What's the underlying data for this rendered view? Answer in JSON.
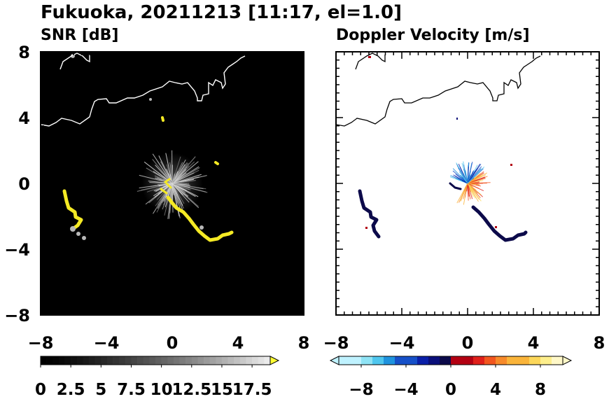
{
  "title": "Fukuoka, 20211213 [11:17, el=1.0]",
  "chart_data": [
    {
      "type": "heatmap",
      "subtitle": "SNR [dB]",
      "xlim": [
        -8,
        8
      ],
      "ylim": [
        -8,
        8
      ],
      "x_ticks": [
        "−8",
        "−4",
        "0",
        "4",
        "8"
      ],
      "y_ticks": [
        "8",
        "4",
        "0",
        "−4",
        "−8"
      ],
      "background_color": "#000000",
      "colorbar": {
        "ticks": [
          "0",
          "2.5",
          "5",
          "7.5",
          "10",
          "12.5",
          "15",
          "17.5"
        ],
        "range": [
          0,
          19
        ],
        "extend": "max",
        "high_color": "#ffff33"
      }
    },
    {
      "type": "heatmap",
      "subtitle": "Doppler Velocity [m/s]",
      "xlim": [
        -8,
        8
      ],
      "ylim": [
        -8,
        8
      ],
      "x_ticks": [
        "−8",
        "−4",
        "0",
        "4",
        "8"
      ],
      "y_ticks": [],
      "background_color": "#ffffff",
      "colorbar": {
        "ticks": [
          "−8",
          "−4",
          "0",
          "4",
          "8"
        ],
        "range": [
          -10,
          10
        ],
        "extend": "both",
        "negative_colors": [
          "#bff2ff",
          "#8fe3f5",
          "#4fc6ee",
          "#1f93de",
          "#1650c8",
          "#0a1fa8",
          "#0a0f7a",
          "#0c0a4a"
        ],
        "positive_colors": [
          "#b30012",
          "#e0201a",
          "#f2561f",
          "#f78a2a",
          "#fab43a",
          "#fcd75a",
          "#fdee8c",
          "#fff8c8"
        ]
      }
    }
  ]
}
